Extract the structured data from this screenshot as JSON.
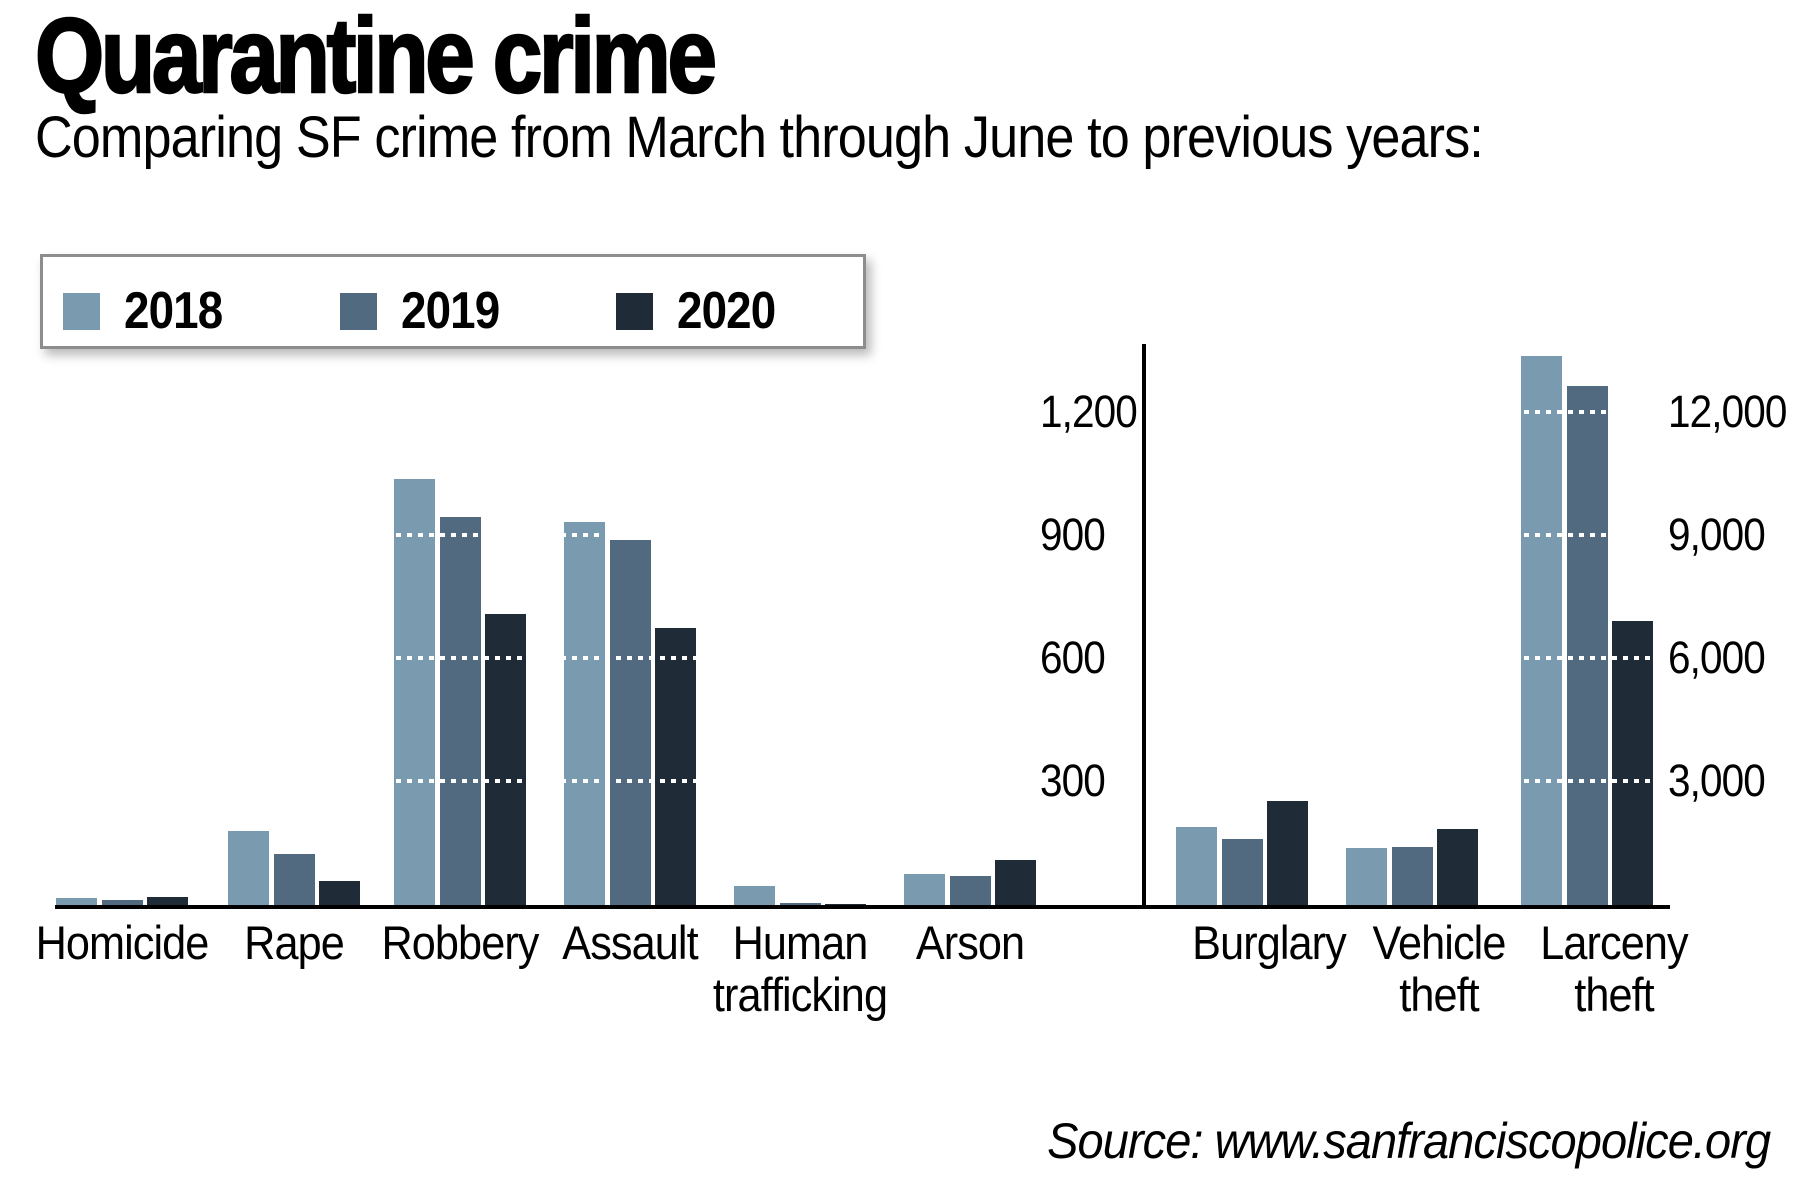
{
  "title": "Quarantine crime",
  "subtitle": "Comparing SF crime from March through June to previous years:",
  "source": "Source: www.sanfranciscopolice.org",
  "colors": {
    "background": "#ffffff",
    "axis": "#000000",
    "legend_border": "#8d8d8d"
  },
  "legend": {
    "years": [
      {
        "label": "2018",
        "color": "#7A9AAF"
      },
      {
        "label": "2019",
        "color": "#526A80"
      },
      {
        "label": "2020",
        "color": "#1F2C37"
      }
    ]
  },
  "chart_data": {
    "type": "bar",
    "title": "Quarantine crime",
    "series": [
      "2018",
      "2019",
      "2020"
    ],
    "legend_position": "top-left",
    "grid": "dotted white lines over bars at each tick",
    "panels": [
      {
        "side": "left",
        "ylim": [
          0,
          1260
        ],
        "gridlines": [
          1200,
          900,
          600,
          300
        ],
        "tick_labels": [
          "1,200",
          "900",
          "600",
          "300"
        ],
        "categories": [
          "Homicide",
          "Rape",
          "Robbery",
          "Assault",
          "Human trafficking",
          "Arson"
        ],
        "category_label_lines": [
          [
            "Homicide"
          ],
          [
            "Rape"
          ],
          [
            "Robbery"
          ],
          [
            "Assault"
          ],
          [
            "Human",
            "trafficking"
          ],
          [
            "Arson"
          ]
        ],
        "values": {
          "2018": [
            23,
            185,
            1045,
            940,
            50,
            80
          ],
          "2019": [
            18,
            130,
            950,
            895,
            10,
            75
          ],
          "2020": [
            24,
            63,
            715,
            680,
            8,
            115
          ]
        }
      },
      {
        "side": "right",
        "ylim": [
          0,
          13600
        ],
        "gridlines": [
          12000,
          9000,
          6000,
          3000
        ],
        "tick_labels": [
          "12,000",
          "9,000",
          "6,000",
          "3,000"
        ],
        "categories": [
          "Burglary",
          "Vehicle theft",
          "Larceny theft"
        ],
        "category_label_lines": [
          [
            "Burglary"
          ],
          [
            "Vehicle",
            "theft"
          ],
          [
            "Larceny",
            "theft"
          ]
        ],
        "values": {
          "2018": [
            1960,
            1430,
            13440
          ],
          "2019": [
            1660,
            1470,
            12700
          ],
          "2020": [
            2595,
            1895,
            6980
          ]
        }
      }
    ]
  }
}
